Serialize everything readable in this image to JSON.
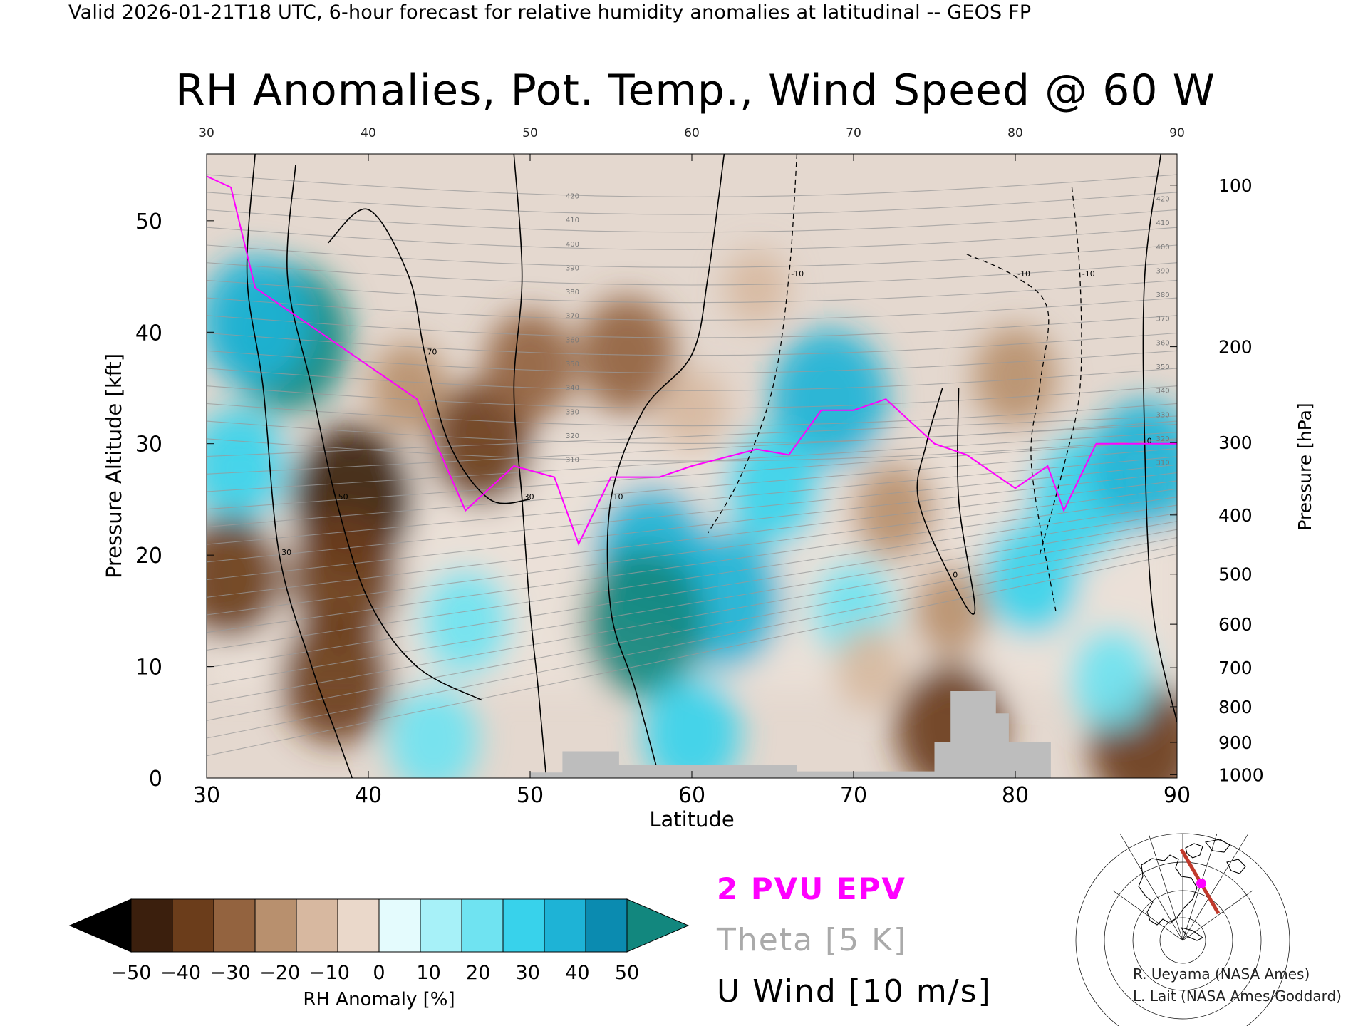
{
  "header": "Valid 2026-01-21T18 UTC, 6-hour forecast for relative humidity anomalies at latitudinal -- GEOS FP",
  "chart_data": {
    "type": "heatmap",
    "title": "RH Anomalies, Pot. Temp., Wind Speed @ 60 W",
    "xlabel": "Latitude",
    "ylabel": "Pressure Altitude [kft]",
    "y2label": "Pressure [hPa]",
    "xlim": [
      30,
      90
    ],
    "ylim": [
      0,
      56
    ],
    "x_ticks": [
      "30",
      "40",
      "50",
      "60",
      "70",
      "80",
      "90"
    ],
    "y_ticks": [
      "0",
      "10",
      "20",
      "30",
      "40",
      "50"
    ],
    "pressure_ticks": [
      {
        "label": "100",
        "kft": 53.2
      },
      {
        "label": "200",
        "kft": 38.7
      },
      {
        "label": "300",
        "kft": 30.1
      },
      {
        "label": "400",
        "kft": 23.6
      },
      {
        "label": "500",
        "kft": 18.3
      },
      {
        "label": "600",
        "kft": 13.8
      },
      {
        "label": "700",
        "kft": 9.9
      },
      {
        "label": "800",
        "kft": 6.4
      },
      {
        "label": "900",
        "kft": 3.2
      },
      {
        "label": "1000",
        "kft": 0.3
      }
    ],
    "colorbar": {
      "label": "RH Anomaly [%]",
      "ticks": [
        "−50",
        "−40",
        "−30",
        "−20",
        "−10",
        "0",
        "10",
        "20",
        "30",
        "40",
        "50"
      ],
      "colors": [
        "#000000",
        "#3b1f0d",
        "#6b3d1b",
        "#93633f",
        "#b8906e",
        "#d7b8a0",
        "#ead8ca",
        "#e4fbfd",
        "#a7f1f8",
        "#6fe3f1",
        "#38d2eb",
        "#1eb3d6",
        "#0b8bb0",
        "#12877e"
      ]
    },
    "legend": [
      {
        "label": "2 PVU EPV",
        "color": "#ff00ff"
      },
      {
        "label": "Theta [5 K]",
        "color": "#aaaaaa"
      },
      {
        "label": "U Wind [10 m/s]",
        "color": "#000000"
      }
    ],
    "anomaly_regions": [
      {
        "lat": 35.0,
        "kft": 39.5,
        "rh": 50
      },
      {
        "lat": 33.0,
        "kft": 41.0,
        "rh": 40
      },
      {
        "lat": 32.0,
        "kft": 28.0,
        "rh": 30
      },
      {
        "lat": 31.5,
        "kft": 18.0,
        "rh": -35
      },
      {
        "lat": 39.0,
        "kft": 25.0,
        "rh": -50
      },
      {
        "lat": 38.5,
        "kft": 18.0,
        "rh": -40
      },
      {
        "lat": 38.0,
        "kft": 9.0,
        "rh": -40
      },
      {
        "lat": 42.5,
        "kft": 35.0,
        "rh": -15
      },
      {
        "lat": 47.0,
        "kft": 30.0,
        "rh": -35
      },
      {
        "lat": 50.0,
        "kft": 37.0,
        "rh": -25
      },
      {
        "lat": 56.0,
        "kft": 38.0,
        "rh": -30
      },
      {
        "lat": 60.0,
        "kft": 33.0,
        "rh": -10
      },
      {
        "lat": 46.0,
        "kft": 14.0,
        "rh": 25
      },
      {
        "lat": 57.5,
        "kft": 20.0,
        "rh": 45
      },
      {
        "lat": 62.0,
        "kft": 16.0,
        "rh": 45
      },
      {
        "lat": 57.0,
        "kft": 14.0,
        "rh": 50
      },
      {
        "lat": 68.5,
        "kft": 34.0,
        "rh": 45
      },
      {
        "lat": 65.0,
        "kft": 26.0,
        "rh": 30
      },
      {
        "lat": 70.0,
        "kft": 15.0,
        "rh": 20
      },
      {
        "lat": 72.5,
        "kft": 24.0,
        "rh": -20
      },
      {
        "lat": 76.0,
        "kft": 15.0,
        "rh": -15
      },
      {
        "lat": 71.0,
        "kft": 10.0,
        "rh": -10
      },
      {
        "lat": 80.0,
        "kft": 36.0,
        "rh": -20
      },
      {
        "lat": 81.0,
        "kft": 18.0,
        "rh": 30
      },
      {
        "lat": 84.0,
        "kft": 25.0,
        "rh": 35
      },
      {
        "lat": 88.0,
        "kft": 28.0,
        "rh": 40
      },
      {
        "lat": 64.0,
        "kft": 44.0,
        "rh": -5
      },
      {
        "lat": 76.0,
        "kft": 4.5,
        "rh": -40
      },
      {
        "lat": 88.0,
        "kft": 3.0,
        "rh": -40
      },
      {
        "lat": 60.0,
        "kft": 4.0,
        "rh": 30
      },
      {
        "lat": 44.0,
        "kft": 3.5,
        "rh": 25
      },
      {
        "lat": 86.0,
        "kft": 9.0,
        "rh": 20
      }
    ],
    "epv_2pvu": [
      [
        30,
        54
      ],
      [
        31.5,
        53
      ],
      [
        33,
        44
      ],
      [
        36,
        41
      ],
      [
        40,
        37
      ],
      [
        43,
        34
      ],
      [
        46,
        24
      ],
      [
        49,
        28
      ],
      [
        51.5,
        27
      ],
      [
        53,
        21
      ],
      [
        55,
        27
      ],
      [
        58,
        27
      ],
      [
        60,
        28
      ],
      [
        64,
        29.5
      ],
      [
        66,
        29
      ],
      [
        68,
        33
      ],
      [
        70,
        33
      ],
      [
        72,
        34
      ],
      [
        75,
        30
      ],
      [
        77,
        29
      ],
      [
        80,
        26
      ],
      [
        82,
        28
      ],
      [
        83,
        24
      ],
      [
        84,
        27
      ],
      [
        85,
        30
      ],
      [
        88,
        30
      ],
      [
        90,
        30
      ]
    ],
    "wind_u_contours": [
      {
        "label": "30",
        "points": [
          [
            33,
            56
          ],
          [
            32.5,
            45
          ],
          [
            33.5,
            35
          ],
          [
            34.5,
            20
          ],
          [
            36.5,
            10
          ],
          [
            38,
            4
          ],
          [
            39,
            0
          ]
        ]
      },
      {
        "label": "50",
        "points": [
          [
            35.5,
            55
          ],
          [
            35,
            45
          ],
          [
            36.5,
            35
          ],
          [
            38,
            25
          ],
          [
            40,
            16
          ],
          [
            43,
            10
          ],
          [
            47,
            7
          ]
        ]
      },
      {
        "label": "70",
        "points": [
          [
            37.5,
            48
          ],
          [
            40,
            51
          ],
          [
            42.5,
            45
          ],
          [
            43.5,
            38
          ],
          [
            45,
            30
          ],
          [
            47.5,
            25
          ],
          [
            50,
            25
          ]
        ]
      },
      {
        "label": "30",
        "points": [
          [
            49,
            56
          ],
          [
            49.5,
            45
          ],
          [
            49,
            35
          ],
          [
            49.5,
            25
          ],
          [
            50,
            15
          ],
          [
            50.5,
            8
          ],
          [
            51,
            0
          ]
        ]
      },
      {
        "label": "10",
        "points": [
          [
            62,
            56
          ],
          [
            61,
            45
          ],
          [
            60,
            38
          ],
          [
            57,
            33
          ],
          [
            55,
            25
          ],
          [
            55,
            15
          ],
          [
            56.5,
            8
          ],
          [
            58,
            0
          ]
        ]
      },
      {
        "label": "0",
        "points": [
          [
            75.5,
            35
          ],
          [
            74.5,
            30
          ],
          [
            74,
            25
          ],
          [
            76,
            18
          ],
          [
            77.5,
            15
          ],
          [
            76.5,
            25
          ],
          [
            76.5,
            35
          ]
        ]
      },
      {
        "label": "0",
        "points": [
          [
            89,
            56
          ],
          [
            88,
            45
          ],
          [
            88,
            30
          ],
          [
            88.5,
            15
          ],
          [
            90,
            5
          ]
        ]
      }
    ],
    "wind_u_negative_contours": [
      {
        "label": "-10",
        "points": [
          [
            66.5,
            56
          ],
          [
            66,
            45
          ],
          [
            65,
            35
          ],
          [
            63,
            27
          ],
          [
            61,
            22
          ]
        ]
      },
      {
        "label": "-10",
        "points": [
          [
            77,
            47
          ],
          [
            80,
            45
          ],
          [
            82,
            42
          ],
          [
            81.5,
            35
          ],
          [
            81,
            28
          ],
          [
            82.5,
            15
          ]
        ]
      },
      {
        "label": "-10",
        "points": [
          [
            83.5,
            53
          ],
          [
            84,
            45
          ],
          [
            84,
            35
          ],
          [
            83,
            28
          ],
          [
            81.5,
            20
          ]
        ]
      }
    ],
    "theta_labels_k": [
      "420",
      "410",
      "400",
      "390",
      "380",
      "370",
      "360",
      "350",
      "340",
      "330",
      "320",
      "310"
    ],
    "terrain": [
      [
        50,
        0.5
      ],
      [
        52,
        2.4
      ],
      [
        55.5,
        1.2
      ],
      [
        58,
        1.2
      ],
      [
        66.5,
        0.6
      ],
      [
        75,
        3.2
      ],
      [
        76,
        7.8
      ],
      [
        77.6,
        7.8
      ],
      [
        78.8,
        5.8
      ],
      [
        79.6,
        3.2
      ],
      [
        82.2,
        0.5
      ]
    ],
    "grid": false
  },
  "credits": [
    "R. Ueyama (NASA Ames)",
    "L. Lait (NASA Ames/Goddard)"
  ]
}
